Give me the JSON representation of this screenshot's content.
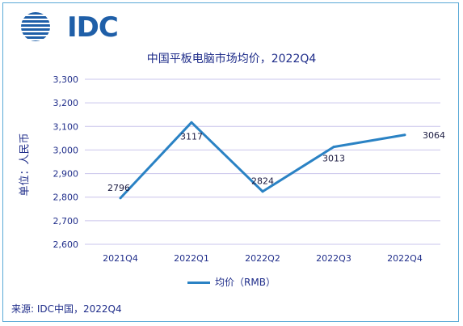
{
  "brand": {
    "logo_text": "IDC",
    "logo_color": "#1f5fa8",
    "accent": "#2a82c4"
  },
  "chart_data": {
    "type": "line",
    "title": "中国平板电脑市场均价，2022Q4",
    "xlabel": "",
    "ylabel": "单位：人民币",
    "categories": [
      "2021Q4",
      "2022Q1",
      "2022Q2",
      "2022Q3",
      "2022Q4"
    ],
    "series": [
      {
        "name": "均价（RMB）",
        "values": [
          2796,
          3117,
          2824,
          3013,
          3064
        ],
        "color": "#2a82c4"
      }
    ],
    "data_labels": [
      "2796",
      "3117",
      "2824",
      "3013",
      "3064"
    ],
    "ylim": [
      2600,
      3300
    ],
    "yticks": [
      2600,
      2700,
      2800,
      2900,
      3000,
      3100,
      3200,
      3300
    ],
    "ytick_labels": [
      "2,600",
      "2,700",
      "2,800",
      "2,900",
      "3,000",
      "3,100",
      "3,200",
      "3,300"
    ],
    "grid": true,
    "legend_position": "bottom"
  },
  "footer": {
    "source": "来源: IDC中国，2022Q4"
  }
}
